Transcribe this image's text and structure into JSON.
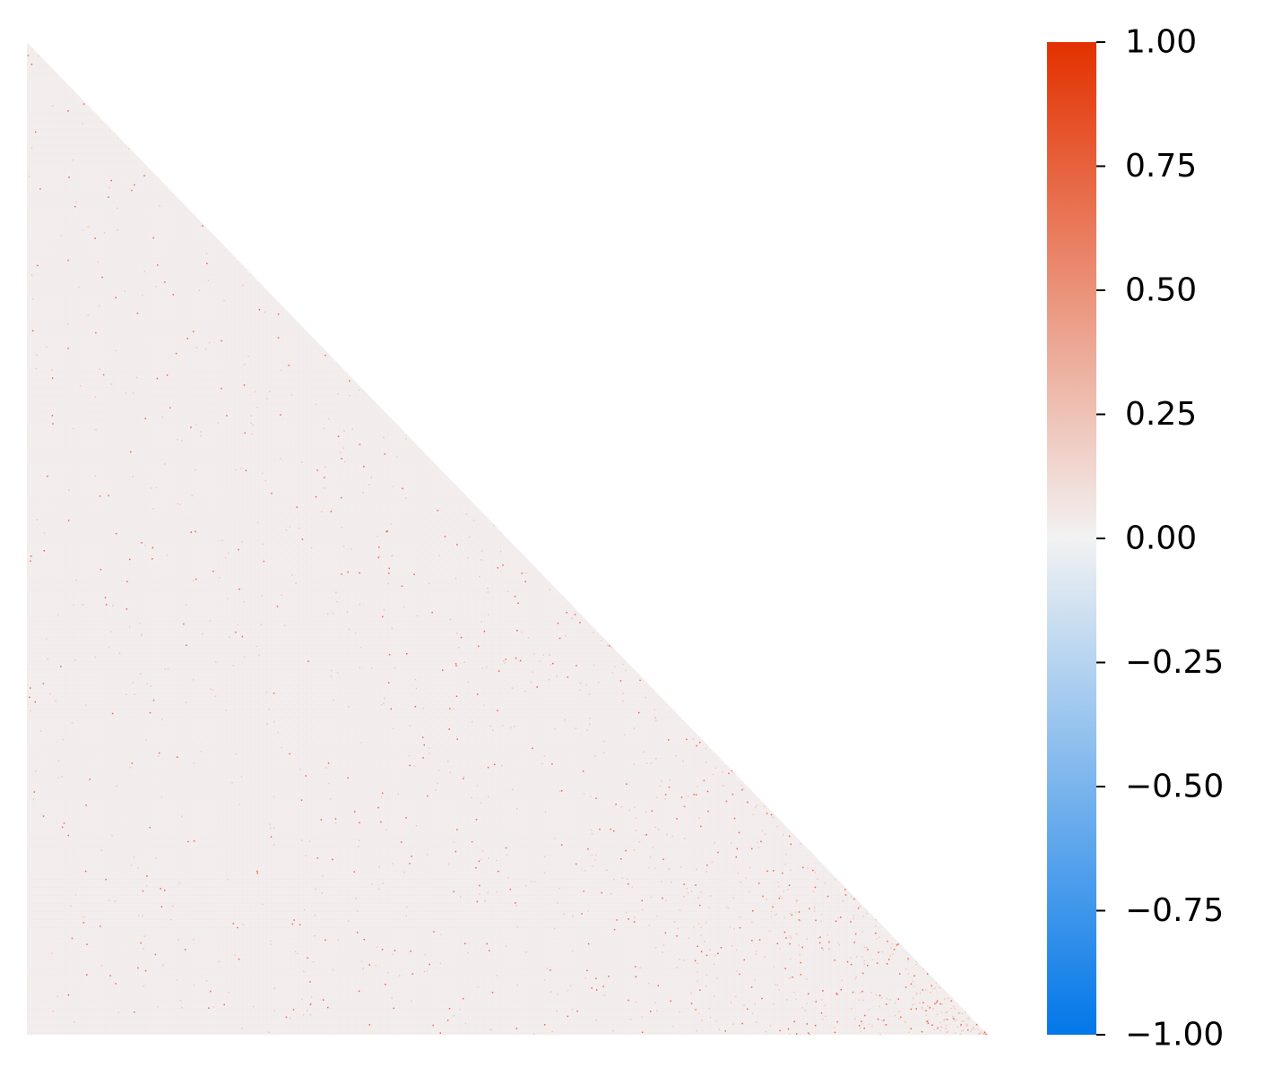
{
  "chart_data": {
    "type": "heatmap",
    "mask": "upper-triangle",
    "title": "",
    "xlabel": "",
    "ylabel": "",
    "x_tick_labels": [],
    "y_tick_labels": [],
    "grid": false,
    "matrix_summary": {
      "typical_value": 0.03,
      "typical_range": [
        -0.05,
        0.1
      ],
      "sparse_outliers_near": 1.0
    },
    "colorbar": {
      "vmin": -1.0,
      "vmax": 1.0,
      "colors": {
        "low": "#0277e9",
        "mid": "#f2f2f2",
        "high": "#e33100"
      },
      "ticks": [
        {
          "value": 1.0,
          "label": "1.00"
        },
        {
          "value": 0.75,
          "label": "0.75"
        },
        {
          "value": 0.5,
          "label": "0.50"
        },
        {
          "value": 0.25,
          "label": "0.25"
        },
        {
          "value": 0.0,
          "label": "0.00"
        },
        {
          "value": -0.25,
          "label": "−0.25"
        },
        {
          "value": -0.5,
          "label": "−0.50"
        },
        {
          "value": -0.75,
          "label": "−0.75"
        },
        {
          "value": -1.0,
          "label": "−1.00"
        }
      ]
    }
  }
}
